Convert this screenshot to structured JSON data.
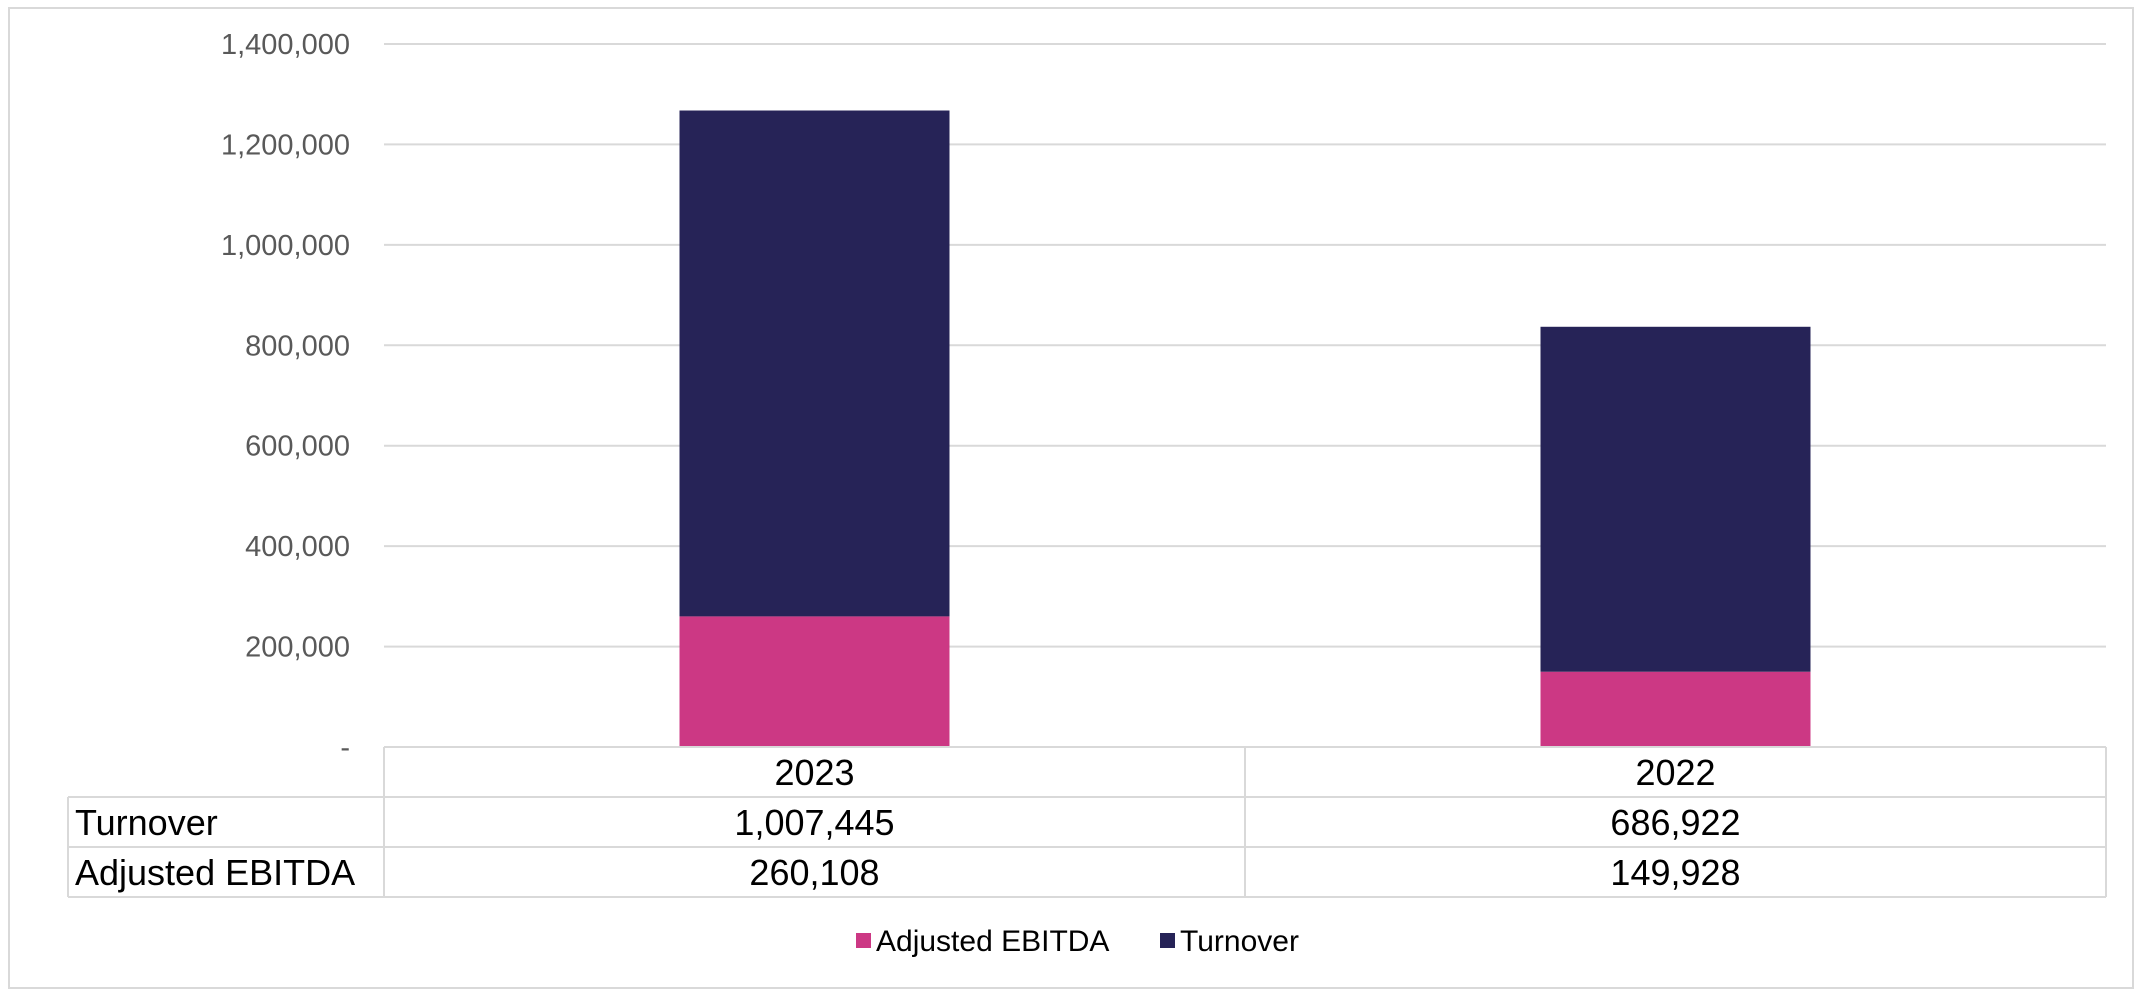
{
  "chart_data": {
    "type": "bar",
    "stacked": true,
    "categories": [
      "2023",
      "2022"
    ],
    "series": [
      {
        "name": "Adjusted EBITDA",
        "values": [
          260108,
          149928
        ],
        "color": "#cc3884"
      },
      {
        "name": "Turnover",
        "values": [
          1007445,
          686922
        ],
        "color": "#262357"
      }
    ],
    "ylim": [
      0,
      1400000
    ],
    "yticks": [
      0,
      200000,
      400000,
      600000,
      800000,
      1000000,
      1200000,
      1400000
    ],
    "ytick_labels": [
      "-",
      "200,000",
      "400,000",
      "600,000",
      "800,000",
      "1,000,000",
      "1,200,000",
      "1,400,000"
    ],
    "grid": true,
    "legend": "bottom",
    "data_table": {
      "headers": [
        "2023",
        "2022"
      ],
      "rows": [
        {
          "label": "Turnover",
          "values": [
            "1,007,445",
            "686,922"
          ]
        },
        {
          "label": "Adjusted EBITDA",
          "values": [
            "260,108",
            "149,928"
          ]
        }
      ]
    }
  }
}
